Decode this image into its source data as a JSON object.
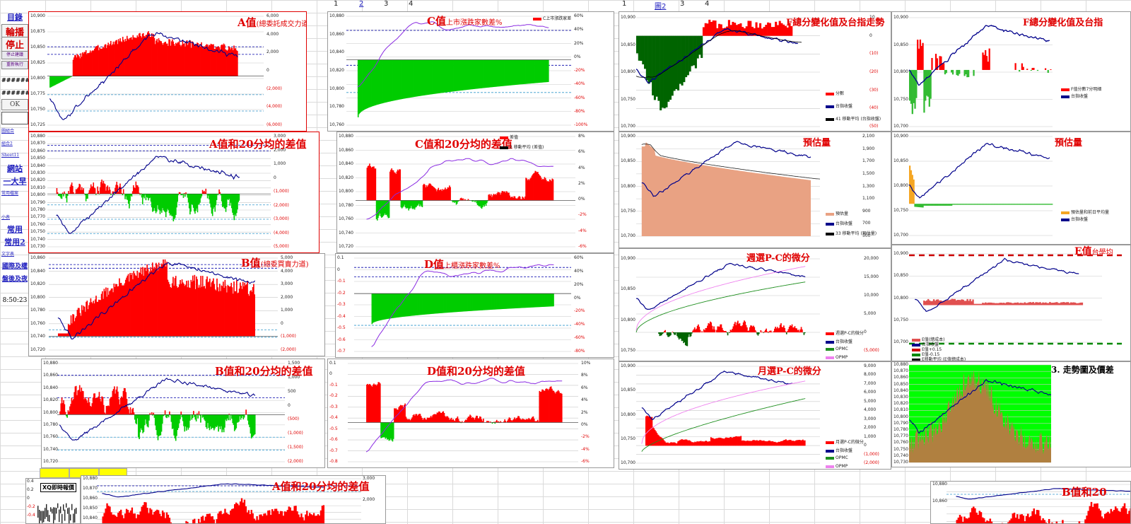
{
  "column_headers": {
    "left": [
      "1",
      "2",
      "3",
      "4"
    ],
    "right": [
      "1",
      "圖2",
      "3",
      "4"
    ]
  },
  "sidebar": {
    "items": [
      {
        "key": "toc",
        "label": "目錄",
        "style": "link"
      },
      {
        "key": "rotate",
        "label": "輪播",
        "style": "red"
      },
      {
        "key": "stop",
        "label": "停止",
        "style": "red"
      },
      {
        "key": "btn1",
        "label": "停止建議",
        "style": "btn"
      },
      {
        "key": "btn2",
        "label": "重新執行",
        "style": "btn"
      },
      {
        "key": "hash1",
        "label": "########",
        "style": "hash"
      },
      {
        "key": "hash2",
        "label": "########",
        "style": "hash"
      },
      {
        "key": "ok",
        "label": "OK",
        "style": "ok"
      },
      {
        "key": "link_s1",
        "label": "圖組合",
        "style": "small"
      },
      {
        "key": "link_s2",
        "label": "組合2",
        "style": "small"
      },
      {
        "key": "link_s3",
        "label": "Sheet11",
        "style": "small"
      },
      {
        "key": "link_b1",
        "label": "網站",
        "style": "link"
      },
      {
        "key": "link_b2",
        "label": "一大早",
        "style": "link"
      },
      {
        "key": "link_s4",
        "label": "常用檔案",
        "style": "small"
      },
      {
        "key": "link_s5",
        "label": "小表",
        "style": "small"
      },
      {
        "key": "link_b3",
        "label": "常用",
        "style": "link"
      },
      {
        "key": "link_b4",
        "label": "常用2",
        "style": "link"
      },
      {
        "key": "link_s6",
        "label": "文字表",
        "style": "small"
      },
      {
        "key": "link_b5",
        "label": "國際及權",
        "style": "link"
      },
      {
        "key": "link_b6",
        "label": "盤後及夜",
        "style": "link"
      },
      {
        "key": "time",
        "label": "8:50:23",
        "style": "time"
      }
    ]
  },
  "charts": [
    {
      "id": "a",
      "title": "A值",
      "subtitle": "(總委託成交力道)",
      "left_ticks": [
        "10,900",
        "10,875",
        "10,850",
        "10,825",
        "10,800",
        "10,775",
        "10,750",
        "10,725"
      ],
      "right_ticks": [
        "6,000",
        "4,000",
        "2,000",
        "0",
        "(2,000)",
        "(4,000)",
        "(6,000)"
      ],
      "legend": []
    },
    {
      "id": "a20",
      "title": "A值和20分均的差值",
      "subtitle": "",
      "left_ticks": [
        "10,880",
        "10,870",
        "10,860",
        "10,850",
        "10,840",
        "10,830",
        "10,820",
        "10,810",
        "10,800",
        "10,790",
        "10,780",
        "10,770",
        "10,760",
        "10,750",
        "10,740",
        "10,730"
      ],
      "right_ticks": [
        "3,000",
        "2,000",
        "1,000",
        "0",
        "(1,000)",
        "(2,000)",
        "(3,000)",
        "(4,000)",
        "(5,000)"
      ],
      "legend": []
    },
    {
      "id": "b",
      "title": "B值",
      "subtitle": "(總委買賣力道)",
      "left_ticks": [
        "10,860",
        "10,840",
        "10,820",
        "10,800",
        "10,780",
        "10,760",
        "10,740",
        "10,720"
      ],
      "right_ticks": [
        "5,000",
        "4,000",
        "3,000",
        "2,000",
        "1,000",
        "0",
        "(1,000)",
        "(2,000)"
      ],
      "legend": []
    },
    {
      "id": "b20",
      "title": "B值和20分均的差值",
      "subtitle": "",
      "left_ticks": [
        "10,880",
        "10,860",
        "10,840",
        "10,820",
        "10,800",
        "10,780",
        "10,760",
        "10,740",
        "10,720"
      ],
      "right_ticks": [
        "1,500",
        "1,000",
        "500",
        "0",
        "(500)",
        "(1,000)",
        "(1,500)",
        "(2,000)"
      ],
      "legend": []
    },
    {
      "id": "c",
      "title": "C值",
      "subtitle": "上市漲跌家數差%",
      "left_ticks": [
        "10,880",
        "10,860",
        "10,840",
        "10,820",
        "10,800",
        "10,780",
        "10,760"
      ],
      "right_ticks": [
        "60%",
        "40%",
        "20%",
        "0%",
        "-20%",
        "-40%",
        "-60%",
        "-80%",
        "-100%"
      ],
      "legend": [
        "C上市漲跌家差"
      ]
    },
    {
      "id": "c20",
      "title": "C值和20分均的差值",
      "subtitle": "",
      "left_ticks": [
        "10,880",
        "10,860",
        "10,840",
        "10,820",
        "10,800",
        "10,780",
        "10,760",
        "10,740",
        "10,720"
      ],
      "right_ticks": [
        "8%",
        "6%",
        "4%",
        "2%",
        "0%",
        "-2%",
        "-4%",
        "-6%"
      ],
      "legend": [
        "差值",
        "2 移動平均 (差值)"
      ]
    },
    {
      "id": "d",
      "title": "D值",
      "subtitle": "上櫃漲跌家數差%",
      "left_ticks": [
        "0.1",
        "0",
        "-0.1",
        "-0.2",
        "-0.3",
        "-0.4",
        "-0.5",
        "-0.6",
        "-0.7"
      ],
      "right_ticks": [
        "60%",
        "40%",
        "20%",
        "0%",
        "-20%",
        "-40%",
        "-60%",
        "-80%"
      ],
      "legend": []
    },
    {
      "id": "d20",
      "title": "D值和20分均的差值",
      "subtitle": "",
      "left_ticks": [
        "0.1",
        "0",
        "-0.1",
        "-0.2",
        "-0.3",
        "-0.4",
        "-0.5",
        "-0.6",
        "-0.7",
        "-0.8"
      ],
      "right_ticks": [
        "10%",
        "8%",
        "6%",
        "4%",
        "2%",
        "0%",
        "-2%",
        "-4%",
        "-6%"
      ],
      "legend": []
    },
    {
      "id": "f1",
      "title": "F總分變化值及台指走勢",
      "subtitle": "",
      "left_ticks": [
        "10,900",
        "10,850",
        "10,800",
        "10,750",
        "10,700"
      ],
      "right_ticks": [
        "10",
        "0",
        "(10)",
        "(20)",
        "(30)",
        "(40)",
        "(50)"
      ],
      "legend": [
        "分數",
        "台指收盤",
        "41 移動平均 (台指收盤)"
      ]
    },
    {
      "id": "f2",
      "title": "F總分變化值及台指",
      "subtitle": "",
      "left_ticks": [
        "10,900",
        "10,850",
        "10,800",
        "10,750",
        "10,700"
      ],
      "right_ticks": [],
      "legend": [
        "F值分數7分明細",
        "台指收盤"
      ]
    },
    {
      "id": "v1",
      "title": "預估量",
      "subtitle": "",
      "left_ticks": [
        "10,900",
        "10,850",
        "10,800",
        "10,750",
        "10,700"
      ],
      "right_ticks": [
        "2,100",
        "1,900",
        "1,700",
        "1,500",
        "1,300",
        "1,100",
        "900",
        "700",
        "500"
      ],
      "legend": [
        "預估量",
        "台指收盤",
        "33 移動平均 (預估量)"
      ]
    },
    {
      "id": "v2",
      "title": "預估量",
      "subtitle": "",
      "left_ticks": [
        "10,900",
        "10,850",
        "10,800",
        "10,750",
        "10,700"
      ],
      "right_ticks": [],
      "legend": [
        "預估量和前日平均量",
        "台指收盤"
      ]
    },
    {
      "id": "w",
      "title": "週選P-C的微分",
      "subtitle": "",
      "left_ticks": [
        "10,900",
        "10,850",
        "10,800",
        "10,750"
      ],
      "right_ticks": [
        "20,000",
        "15,000",
        "10,000",
        "5,000",
        "0",
        "(5,000)"
      ],
      "legend": [
        "週選P-C的微分",
        "台指收盤",
        "OPMC",
        "OPMP"
      ]
    },
    {
      "id": "e",
      "title": "E值",
      "subtitle": "台學均",
      "left_ticks": [
        "10,900",
        "10,850",
        "10,800",
        "10,750",
        "10,700"
      ],
      "right_ticks": [],
      "legend": [
        "E值(總成本)",
        "台指收盤",
        "E值+0.15",
        "E值-0.15",
        "E移動平均 (E值總成本)"
      ]
    },
    {
      "id": "m",
      "title": "月選P-C的微分",
      "subtitle": "",
      "left_ticks": [
        "10,900",
        "10,850",
        "10,800",
        "10,750",
        "10,700"
      ],
      "right_ticks": [
        "9,000",
        "8,000",
        "7,000",
        "6,000",
        "5,000",
        "4,000",
        "3,000",
        "2,000",
        "1,000",
        "0",
        "(1,000)",
        "(2,000)"
      ],
      "legend": [
        "月選P-C的微分",
        "台指收盤",
        "OPMC",
        "OPMP"
      ]
    },
    {
      "id": "t3",
      "title": "3. 走勢圖及價差",
      "subtitle": "",
      "left_ticks": [
        "10,880",
        "10,870",
        "10,860",
        "10,850",
        "10,840",
        "10,830",
        "10,820",
        "10,810",
        "10,800",
        "10,790",
        "10,780",
        "10,770",
        "10,760",
        "10,750",
        "10,740",
        "10,730"
      ],
      "right_ticks": [],
      "legend": []
    },
    {
      "id": "a20b",
      "title": "A值和20分均的差值",
      "subtitle": "",
      "left_ticks": [
        "10,880",
        "10,870",
        "10,860",
        "10,850",
        "10,840"
      ],
      "right_ticks": [
        "3,000",
        "2,000"
      ],
      "legend": []
    },
    {
      "id": "b20b",
      "title": "B值和20",
      "subtitle": "",
      "left_ticks": [
        "10,880",
        "10,860"
      ],
      "right_ticks": [],
      "legend": []
    }
  ],
  "mini_panel": {
    "label": "XQ即時報價",
    "ticks": [
      "0.4",
      "0.2",
      "0",
      "-0.2",
      "-0.4"
    ]
  },
  "colors": {
    "red": "#ff0000",
    "green": "#00cc00",
    "darkgreen": "#006400",
    "navy": "#00008b",
    "purple": "#8a2be2",
    "salmon": "#e9a283",
    "orange": "#f5a623",
    "brown": "#b08040",
    "violet": "#ee82ee",
    "olive": "#1f8f1f"
  }
}
